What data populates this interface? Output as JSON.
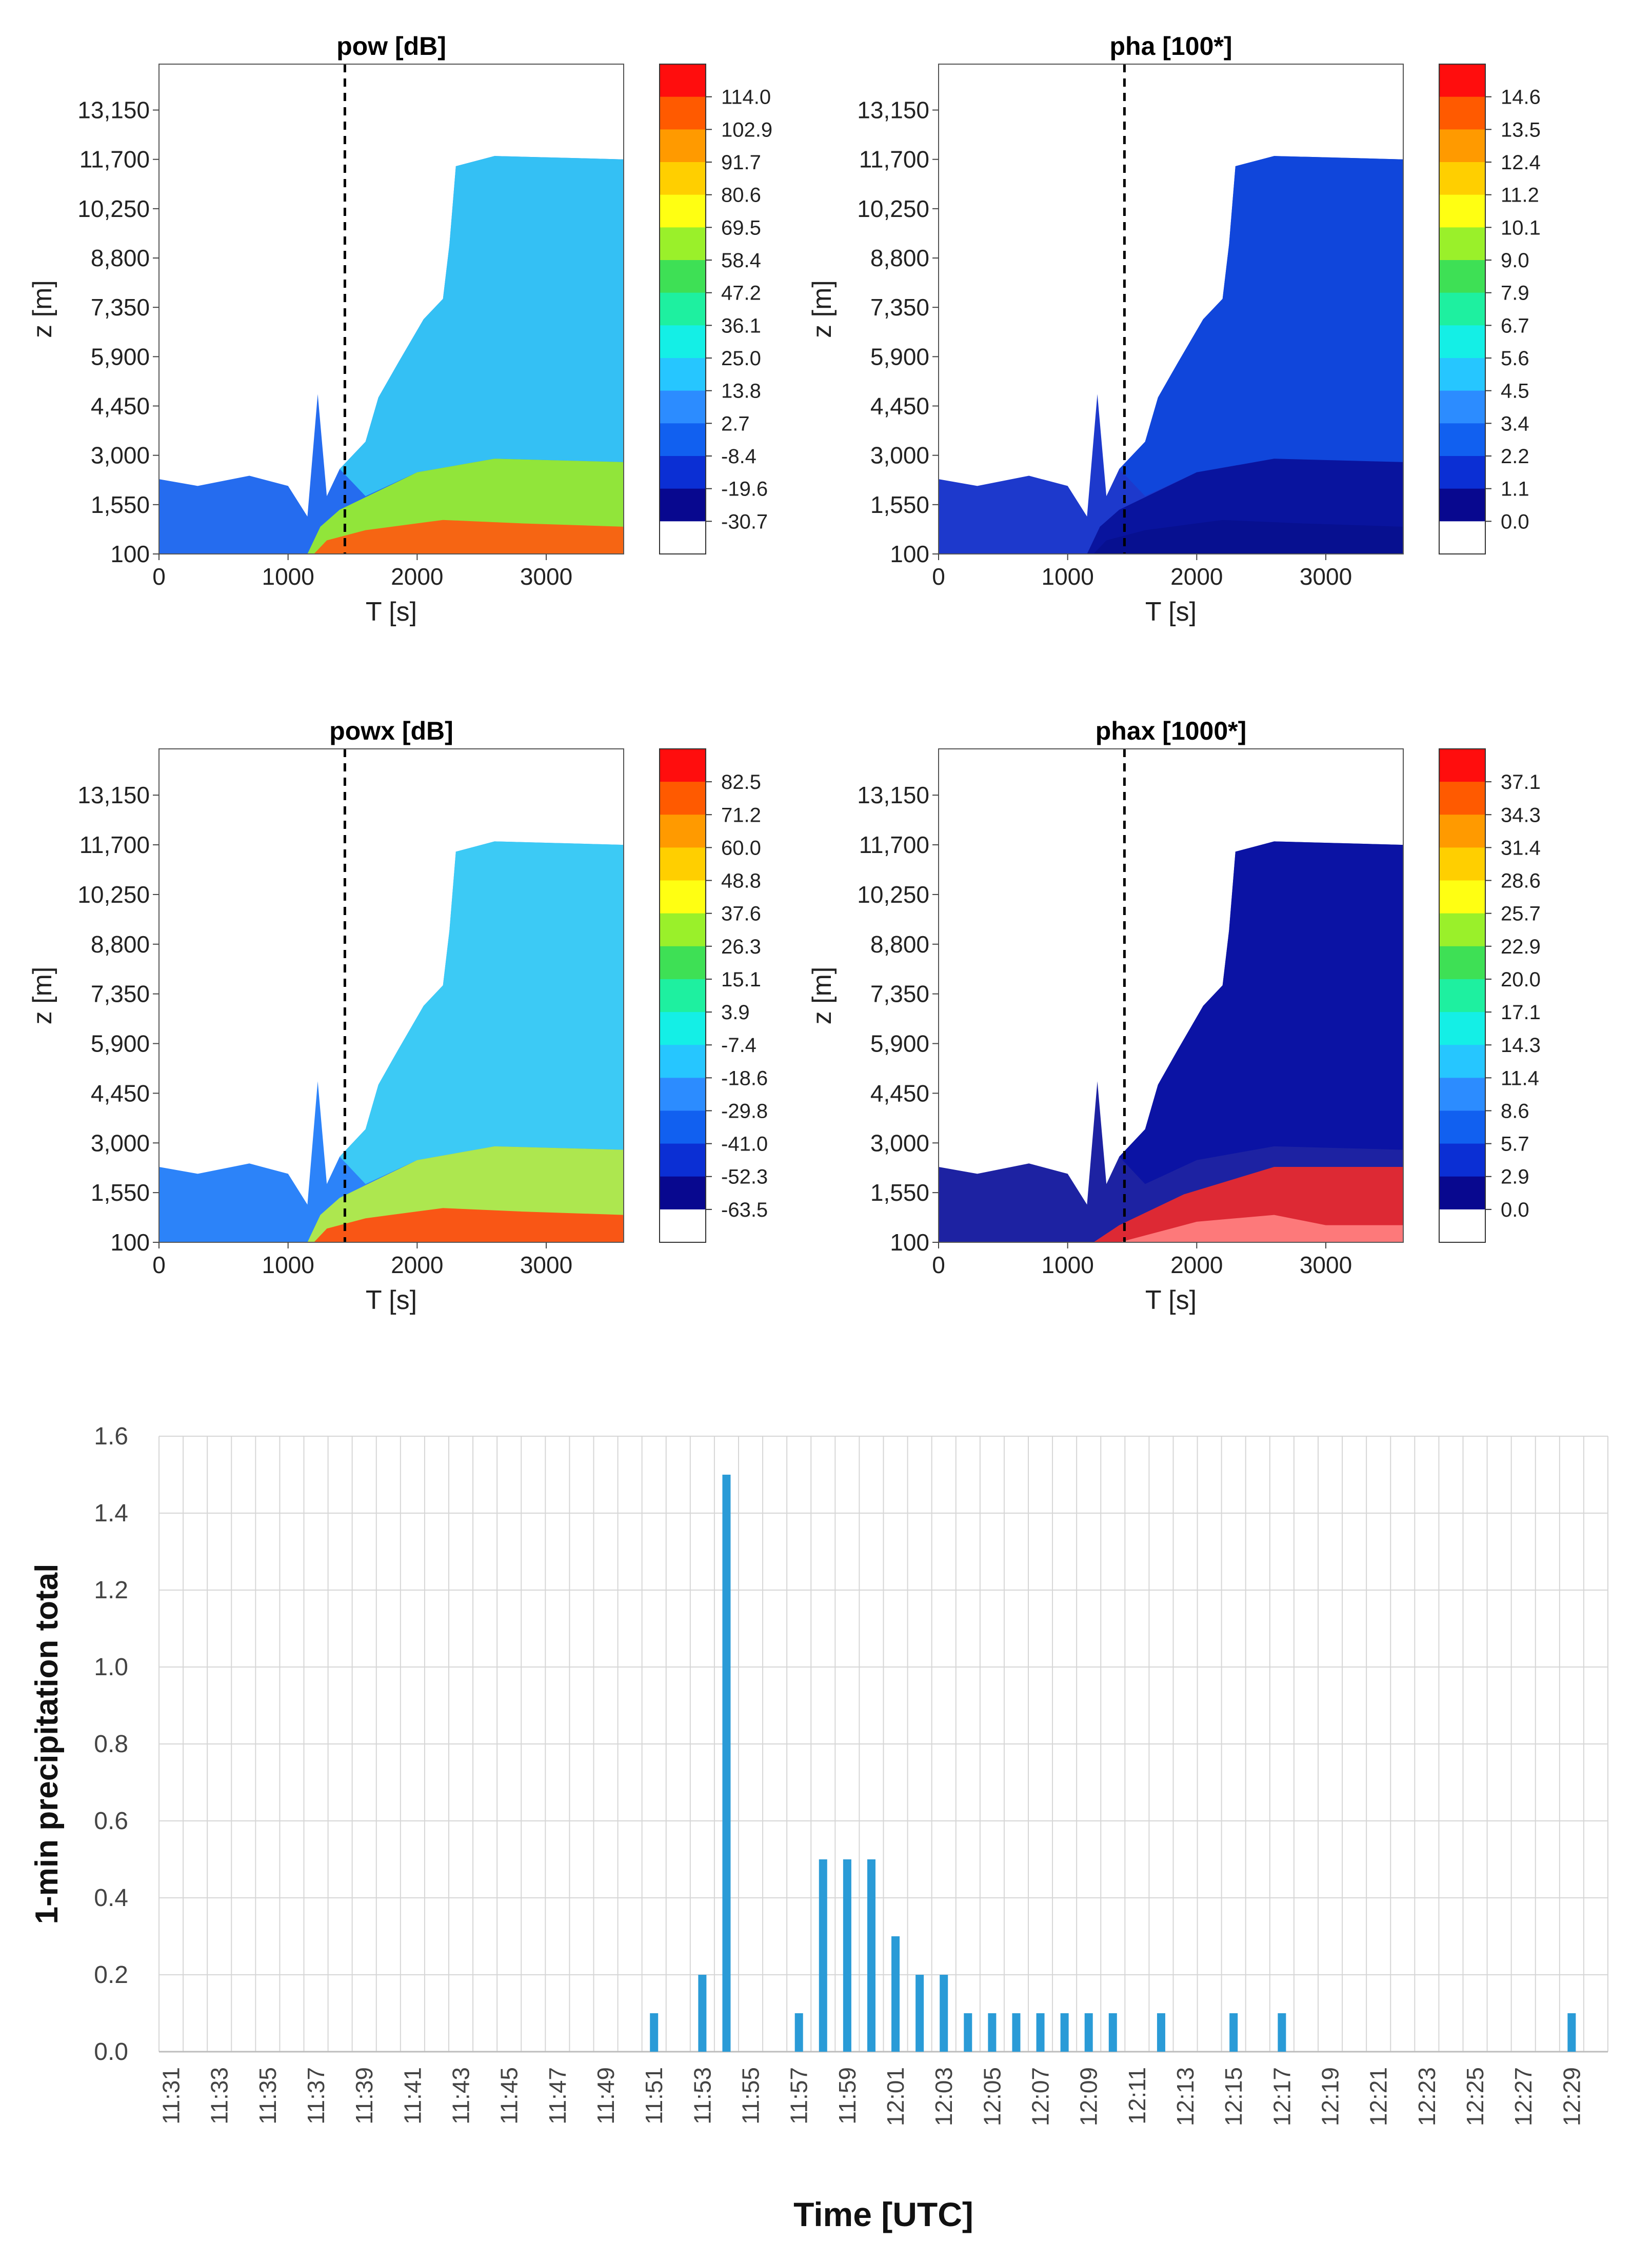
{
  "chart_data": [
    {
      "type": "heatmap",
      "title": "pow [dB]",
      "xlabel": "T [s]",
      "ylabel": "z [m]",
      "xlim": [
        0,
        3600
      ],
      "ylim": [
        100,
        14500
      ],
      "xticks": [
        "0",
        "1000",
        "2000",
        "3000"
      ],
      "yticks": [
        "100",
        "1,550",
        "3,000",
        "4,450",
        "5,900",
        "7,350",
        "8,800",
        "10,250",
        "11,700",
        "13,150"
      ],
      "colorbar_labels": [
        "114.0",
        "102.9",
        "91.7",
        "80.6",
        "69.5",
        "58.4",
        "47.2",
        "36.1",
        "25.0",
        "13.8",
        "2.7",
        "-8.4",
        "-19.6",
        "-30.7"
      ],
      "marker_line_t": 1440
    },
    {
      "type": "heatmap",
      "title": "pha [100*]",
      "xlabel": "T [s]",
      "ylabel": "z [m]",
      "xlim": [
        0,
        3600
      ],
      "ylim": [
        100,
        14500
      ],
      "xticks": [
        "0",
        "1000",
        "2000",
        "3000"
      ],
      "yticks": [
        "100",
        "1,550",
        "3,000",
        "4,450",
        "5,900",
        "7,350",
        "8,800",
        "10,250",
        "11,700",
        "13,150"
      ],
      "colorbar_labels": [
        "14.6",
        "13.5",
        "12.4",
        "11.2",
        "10.1",
        "9.0",
        "7.9",
        "6.7",
        "5.6",
        "4.5",
        "3.4",
        "2.2",
        "1.1",
        "0.0"
      ],
      "marker_line_t": 1440
    },
    {
      "type": "heatmap",
      "title": "powx [dB]",
      "xlabel": "T [s]",
      "ylabel": "z [m]",
      "xlim": [
        0,
        3600
      ],
      "ylim": [
        100,
        14500
      ],
      "xticks": [
        "0",
        "1000",
        "2000",
        "3000"
      ],
      "yticks": [
        "100",
        "1,550",
        "3,000",
        "4,450",
        "5,900",
        "7,350",
        "8,800",
        "10,250",
        "11,700",
        "13,150"
      ],
      "colorbar_labels": [
        "82.5",
        "71.2",
        "60.0",
        "48.8",
        "37.6",
        "26.3",
        "15.1",
        "3.9",
        "-7.4",
        "-18.6",
        "-29.8",
        "-41.0",
        "-52.3",
        "-63.5"
      ],
      "marker_line_t": 1440
    },
    {
      "type": "heatmap",
      "title": "phax [1000*]",
      "xlabel": "T [s]",
      "ylabel": "z [m]",
      "xlim": [
        0,
        3600
      ],
      "ylim": [
        100,
        14500
      ],
      "xticks": [
        "0",
        "1000",
        "2000",
        "3000"
      ],
      "yticks": [
        "100",
        "1,550",
        "3,000",
        "4,450",
        "5,900",
        "7,350",
        "8,800",
        "10,250",
        "11,700",
        "13,150"
      ],
      "colorbar_labels": [
        "37.1",
        "34.3",
        "31.4",
        "28.6",
        "25.7",
        "22.9",
        "20.0",
        "17.1",
        "14.3",
        "11.4",
        "8.6",
        "5.7",
        "2.9",
        "0.0"
      ],
      "marker_line_t": 1440
    },
    {
      "type": "bar",
      "title": "",
      "xlabel": "Time [UTC]",
      "ylabel": "1-min precipitation total",
      "ylim": [
        0,
        1.6
      ],
      "yticks": [
        "0.0",
        "0.2",
        "0.4",
        "0.6",
        "0.8",
        "1.0",
        "1.2",
        "1.4",
        "1.6"
      ],
      "tick_labels": [
        "11:31",
        "11:33",
        "11:35",
        "11:37",
        "11:39",
        "11:41",
        "11:43",
        "11:45",
        "11:47",
        "11:49",
        "11:51",
        "11:53",
        "11:55",
        "11:57",
        "11:59",
        "12:01",
        "12:03",
        "12:05",
        "12:07",
        "12:09",
        "12:11",
        "12:13",
        "12:15",
        "12:17",
        "12:19",
        "12:21",
        "12:23",
        "12:25",
        "12:27",
        "12:29"
      ],
      "start_time": "11:31",
      "category_count": 60,
      "bars": [
        {
          "time": "11:51",
          "value": 0.1
        },
        {
          "time": "11:53",
          "value": 0.2
        },
        {
          "time": "11:54",
          "value": 1.5
        },
        {
          "time": "11:57",
          "value": 0.1
        },
        {
          "time": "11:58",
          "value": 0.5
        },
        {
          "time": "11:59",
          "value": 0.5
        },
        {
          "time": "12:00",
          "value": 0.5
        },
        {
          "time": "12:01",
          "value": 0.3
        },
        {
          "time": "12:02",
          "value": 0.2
        },
        {
          "time": "12:03",
          "value": 0.2
        },
        {
          "time": "12:04",
          "value": 0.1
        },
        {
          "time": "12:05",
          "value": 0.1
        },
        {
          "time": "12:06",
          "value": 0.1
        },
        {
          "time": "12:07",
          "value": 0.1
        },
        {
          "time": "12:08",
          "value": 0.1
        },
        {
          "time": "12:09",
          "value": 0.1
        },
        {
          "time": "12:10",
          "value": 0.1
        },
        {
          "time": "12:12",
          "value": 0.1
        },
        {
          "time": "12:15",
          "value": 0.1
        },
        {
          "time": "12:17",
          "value": 0.1
        },
        {
          "time": "12:29",
          "value": 0.1
        }
      ]
    }
  ]
}
